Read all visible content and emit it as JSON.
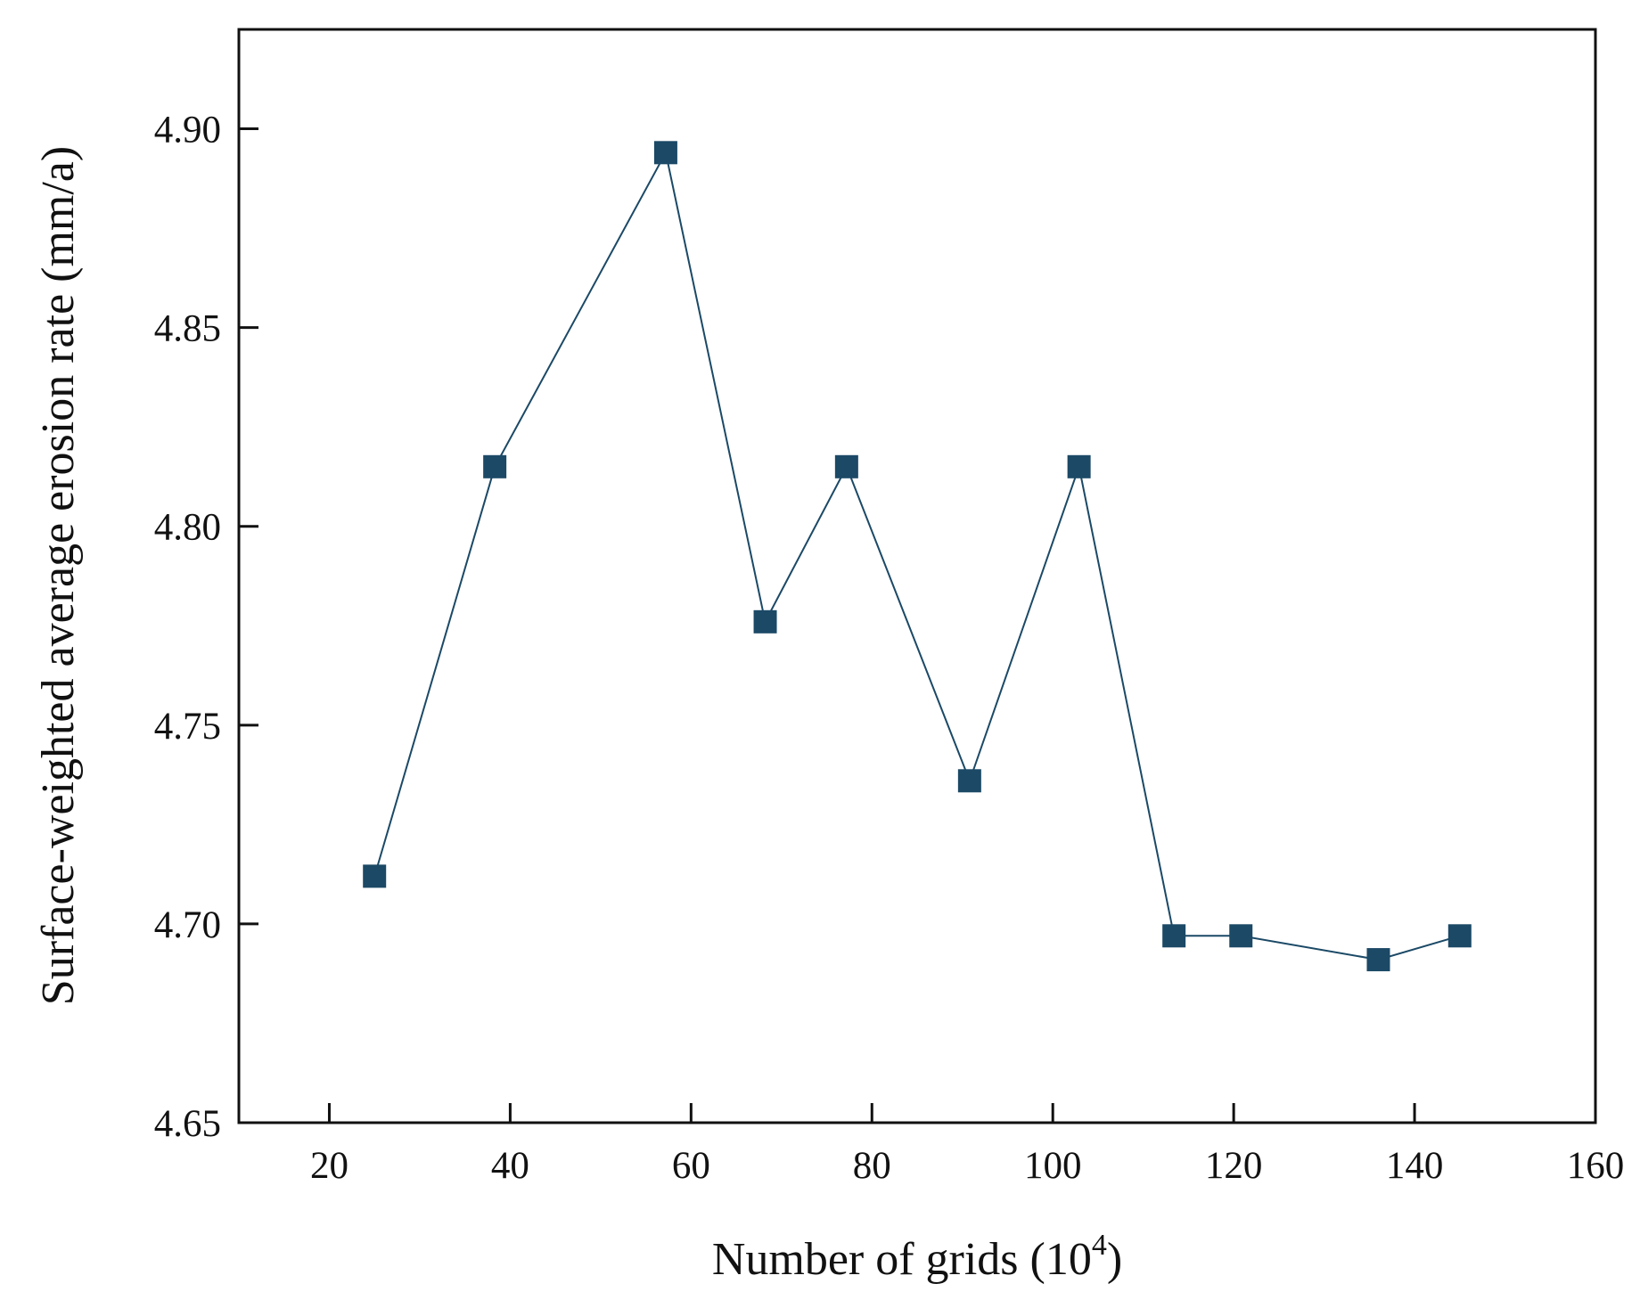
{
  "chart_data": {
    "type": "line",
    "title": "",
    "xlabel": "Number of grids (10",
    "xlabel_superscript": "4",
    "xlabel_close": ")",
    "ylabel": "Surface-weighted average erosion rate (mm/a)",
    "xlim": [
      10,
      160
    ],
    "ylim": [
      4.65,
      4.925
    ],
    "xticks": [
      20,
      40,
      60,
      80,
      100,
      120,
      140,
      160
    ],
    "yticks": [
      "4.65",
      "4.70",
      "4.75",
      "4.80",
      "4.85",
      "4.90"
    ],
    "grid": false,
    "legend": "none",
    "marker": "square",
    "color": "#1b4966",
    "series": [
      {
        "x": [
          25,
          38.3,
          57.2,
          68.2,
          77.2,
          90.8,
          102.9,
          113.4,
          120.8,
          136,
          145
        ],
        "y": [
          4.712,
          4.815,
          4.894,
          4.776,
          4.815,
          4.736,
          4.815,
          4.697,
          4.697,
          4.691,
          4.697
        ]
      }
    ]
  }
}
